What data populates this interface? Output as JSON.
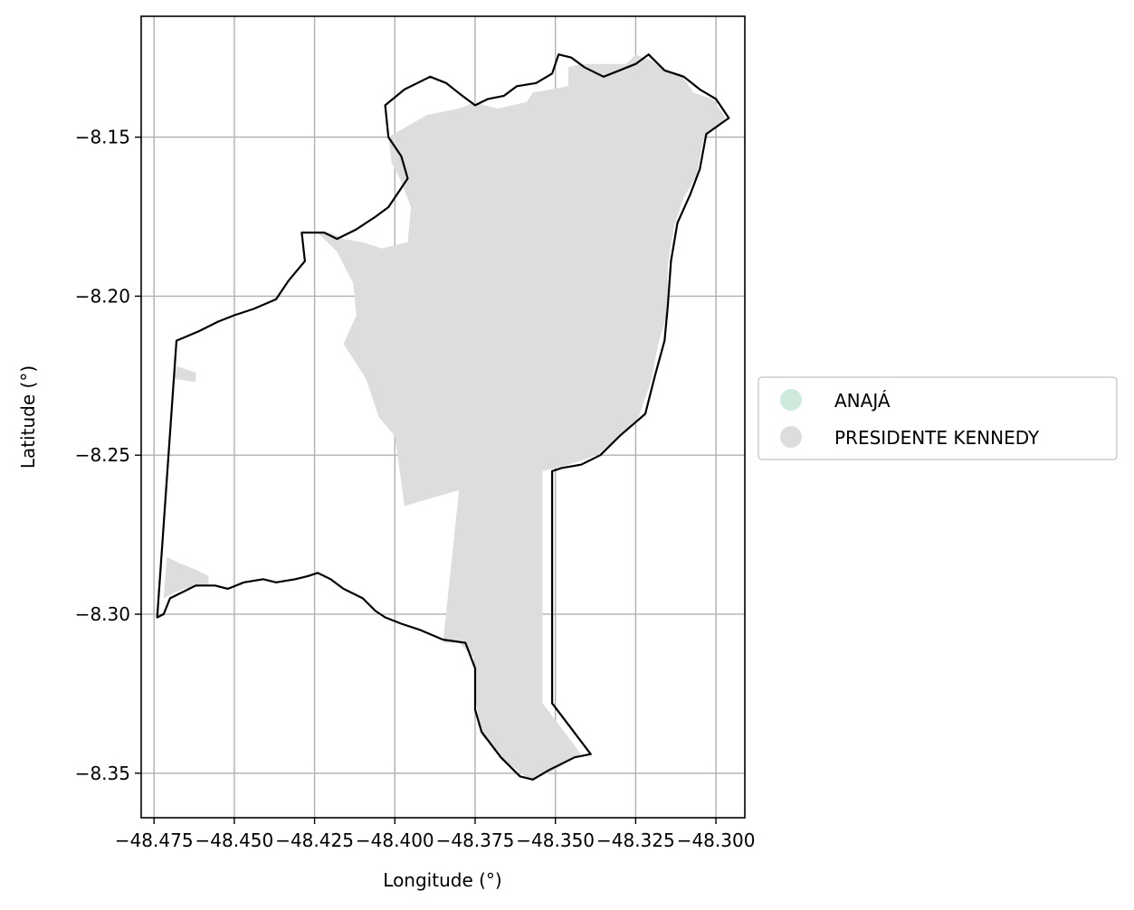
{
  "chart_data": {
    "type": "map",
    "xlabel": "Longitude (°)",
    "ylabel": "Latitude (°)",
    "xlim": [
      -48.479,
      -48.291
    ],
    "ylim": [
      -8.364,
      -8.112
    ],
    "grid": true,
    "x_ticks": [
      {
        "value": -48.475,
        "label": "−48.475"
      },
      {
        "value": -48.45,
        "label": "−48.450"
      },
      {
        "value": -48.425,
        "label": "−48.425"
      },
      {
        "value": -48.4,
        "label": "−48.400"
      },
      {
        "value": -48.375,
        "label": "−48.375"
      },
      {
        "value": -48.35,
        "label": "−48.350"
      },
      {
        "value": -48.325,
        "label": "−48.325"
      },
      {
        "value": -48.3,
        "label": "−48.300"
      }
    ],
    "y_ticks": [
      {
        "value": -8.15,
        "label": "−8.15"
      },
      {
        "value": -8.2,
        "label": "−8.20"
      },
      {
        "value": -8.25,
        "label": "−8.25"
      },
      {
        "value": -8.3,
        "label": "−8.30"
      },
      {
        "value": -8.35,
        "label": "−8.35"
      }
    ],
    "legend_position": "right",
    "legend": [
      {
        "label": "ANAJÁ",
        "color": "#cfeadd"
      },
      {
        "label": "PRESIDENTE KENNEDY",
        "color": "#dddddd"
      }
    ],
    "regions": [
      {
        "name": "PRESIDENTE KENNEDY",
        "color": "#dddddd",
        "coords": [
          [
            -48.402,
            -8.15
          ],
          [
            -48.39,
            -8.143
          ],
          [
            -48.38,
            -8.141
          ],
          [
            -48.375,
            -8.139
          ],
          [
            -48.372,
            -8.14
          ],
          [
            -48.368,
            -8.141
          ],
          [
            -48.359,
            -8.139
          ],
          [
            -48.357,
            -8.136
          ],
          [
            -48.346,
            -8.134
          ],
          [
            -48.346,
            -8.128
          ],
          [
            -48.342,
            -8.127
          ],
          [
            -48.338,
            -8.127
          ],
          [
            -48.334,
            -8.127
          ],
          [
            -48.328,
            -8.127
          ],
          [
            -48.325,
            -8.124
          ],
          [
            -48.32,
            -8.126
          ],
          [
            -48.316,
            -8.129
          ],
          [
            -48.311,
            -8.13
          ],
          [
            -48.307,
            -8.136
          ],
          [
            -48.301,
            -8.138
          ],
          [
            -48.297,
            -8.144
          ],
          [
            -48.304,
            -8.151
          ],
          [
            -48.306,
            -8.162
          ],
          [
            -48.31,
            -8.169
          ],
          [
            -48.313,
            -8.178
          ],
          [
            -48.315,
            -8.19
          ],
          [
            -48.315,
            -8.205
          ],
          [
            -48.318,
            -8.215
          ],
          [
            -48.32,
            -8.226
          ],
          [
            -48.324,
            -8.238
          ],
          [
            -48.331,
            -8.245
          ],
          [
            -48.337,
            -8.25
          ],
          [
            -48.346,
            -8.253
          ],
          [
            -48.354,
            -8.255
          ],
          [
            -48.354,
            -8.328
          ],
          [
            -48.342,
            -8.344
          ],
          [
            -48.352,
            -8.35
          ],
          [
            -48.358,
            -8.352
          ],
          [
            -48.366,
            -8.346
          ],
          [
            -48.373,
            -8.338
          ],
          [
            -48.375,
            -8.326
          ],
          [
            -48.375,
            -8.314
          ],
          [
            -48.38,
            -8.309
          ],
          [
            -48.385,
            -8.309
          ],
          [
            -48.38,
            -8.261
          ],
          [
            -48.397,
            -8.266
          ],
          [
            -48.4,
            -8.244
          ],
          [
            -48.405,
            -8.238
          ],
          [
            -48.409,
            -8.226
          ],
          [
            -48.416,
            -8.215
          ],
          [
            -48.412,
            -8.206
          ],
          [
            -48.413,
            -8.196
          ],
          [
            -48.418,
            -8.186
          ],
          [
            -48.424,
            -8.18
          ],
          [
            -48.42,
            -8.18
          ],
          [
            -48.416,
            -8.182
          ],
          [
            -48.41,
            -8.183
          ],
          [
            -48.404,
            -8.185
          ],
          [
            -48.396,
            -8.183
          ],
          [
            -48.395,
            -8.172
          ],
          [
            -48.398,
            -8.164
          ],
          [
            -48.401,
            -8.158
          ]
        ]
      },
      {
        "name": "PRESIDENTE KENNEDY",
        "color": "#dddddd",
        "coords": [
          [
            -48.468,
            -8.222
          ],
          [
            -48.462,
            -8.224
          ],
          [
            -48.462,
            -8.227
          ],
          [
            -48.469,
            -8.226
          ]
        ]
      },
      {
        "name": "PRESIDENTE KENNEDY",
        "color": "#dddddd",
        "coords": [
          [
            -48.471,
            -8.282
          ],
          [
            -48.467,
            -8.284
          ],
          [
            -48.462,
            -8.286
          ],
          [
            -48.458,
            -8.288
          ],
          [
            -48.458,
            -8.291
          ],
          [
            -48.466,
            -8.292
          ],
          [
            -48.472,
            -8.295
          ]
        ]
      }
    ],
    "boundaries": [
      {
        "name": "boundary",
        "coords": [
          [
            -48.468,
            -8.214
          ],
          [
            -48.461,
            -8.211
          ],
          [
            -48.455,
            -8.208
          ],
          [
            -48.45,
            -8.206
          ],
          [
            -48.444,
            -8.204
          ],
          [
            -48.437,
            -8.201
          ],
          [
            -48.433,
            -8.195
          ],
          [
            -48.428,
            -8.189
          ],
          [
            -48.429,
            -8.18
          ],
          [
            -48.422,
            -8.18
          ],
          [
            -48.418,
            -8.182
          ],
          [
            -48.412,
            -8.179
          ],
          [
            -48.406,
            -8.175
          ],
          [
            -48.402,
            -8.172
          ],
          [
            -48.396,
            -8.163
          ],
          [
            -48.398,
            -8.156
          ],
          [
            -48.402,
            -8.15
          ],
          [
            -48.403,
            -8.14
          ],
          [
            -48.397,
            -8.135
          ],
          [
            -48.389,
            -8.131
          ],
          [
            -48.384,
            -8.133
          ],
          [
            -48.379,
            -8.137
          ],
          [
            -48.375,
            -8.14
          ],
          [
            -48.371,
            -8.138
          ],
          [
            -48.366,
            -8.137
          ],
          [
            -48.362,
            -8.134
          ],
          [
            -48.356,
            -8.133
          ],
          [
            -48.351,
            -8.13
          ],
          [
            -48.349,
            -8.124
          ],
          [
            -48.345,
            -8.125
          ],
          [
            -48.341,
            -8.128
          ],
          [
            -48.335,
            -8.131
          ],
          [
            -48.33,
            -8.129
          ],
          [
            -48.325,
            -8.127
          ],
          [
            -48.321,
            -8.124
          ],
          [
            -48.316,
            -8.129
          ],
          [
            -48.31,
            -8.131
          ],
          [
            -48.305,
            -8.135
          ],
          [
            -48.3,
            -8.138
          ],
          [
            -48.296,
            -8.144
          ],
          [
            -48.303,
            -8.149
          ],
          [
            -48.305,
            -8.16
          ],
          [
            -48.308,
            -8.168
          ],
          [
            -48.312,
            -8.177
          ],
          [
            -48.314,
            -8.189
          ],
          [
            -48.315,
            -8.203
          ],
          [
            -48.316,
            -8.214
          ],
          [
            -48.319,
            -8.225
          ],
          [
            -48.322,
            -8.237
          ],
          [
            -48.33,
            -8.244
          ],
          [
            -48.336,
            -8.25
          ],
          [
            -48.342,
            -8.253
          ],
          [
            -48.348,
            -8.254
          ],
          [
            -48.351,
            -8.255
          ],
          [
            -48.351,
            -8.328
          ],
          [
            -48.339,
            -8.344
          ],
          [
            -48.344,
            -8.345
          ],
          [
            -48.352,
            -8.349
          ],
          [
            -48.357,
            -8.352
          ],
          [
            -48.361,
            -8.351
          ],
          [
            -48.367,
            -8.345
          ],
          [
            -48.373,
            -8.337
          ],
          [
            -48.375,
            -8.33
          ],
          [
            -48.375,
            -8.317
          ],
          [
            -48.378,
            -8.309
          ],
          [
            -48.385,
            -8.308
          ],
          [
            -48.392,
            -8.305
          ],
          [
            -48.398,
            -8.303
          ],
          [
            -48.403,
            -8.301
          ],
          [
            -48.406,
            -8.299
          ],
          [
            -48.41,
            -8.295
          ],
          [
            -48.416,
            -8.292
          ],
          [
            -48.42,
            -8.289
          ],
          [
            -48.424,
            -8.287
          ],
          [
            -48.427,
            -8.288
          ],
          [
            -48.431,
            -8.289
          ],
          [
            -48.437,
            -8.29
          ],
          [
            -48.441,
            -8.289
          ],
          [
            -48.447,
            -8.29
          ],
          [
            -48.452,
            -8.292
          ],
          [
            -48.456,
            -8.291
          ],
          [
            -48.462,
            -8.291
          ],
          [
            -48.466,
            -8.293
          ],
          [
            -48.47,
            -8.295
          ],
          [
            -48.472,
            -8.3
          ],
          [
            -48.474,
            -8.301
          ],
          [
            -48.468,
            -8.214
          ]
        ]
      }
    ]
  }
}
